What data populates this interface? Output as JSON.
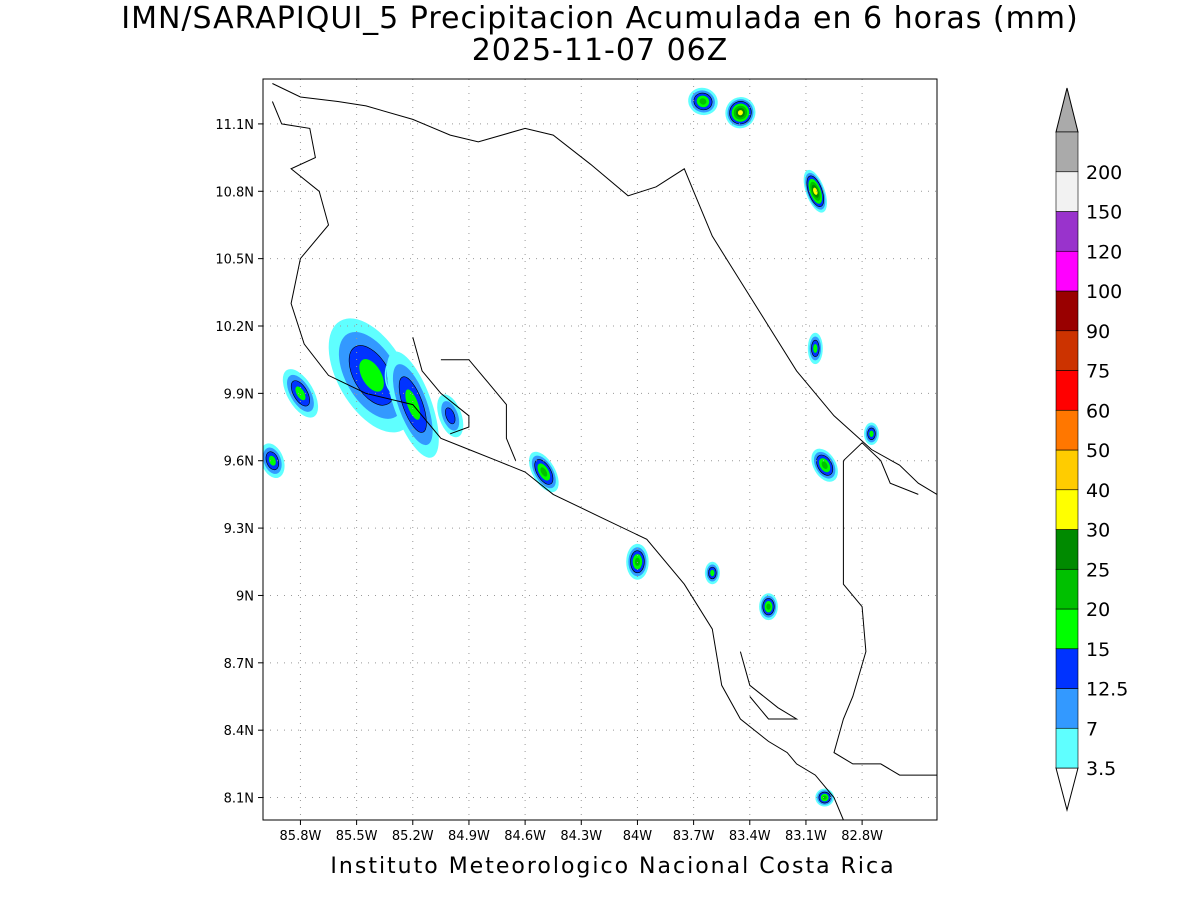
{
  "title": {
    "line1": "IMN/SARAPIQUI_5 Precipitacion Acumulada en 6 horas (mm)",
    "line2": "2025-11-07 06Z"
  },
  "footer": "Instituto Meteorologico Nacional Costa Rica",
  "map": {
    "lon_range": [
      -86.0,
      -82.4
    ],
    "lat_range": [
      8.0,
      11.3
    ],
    "x_ticks": [
      {
        "value": -85.8,
        "label": "85.8W"
      },
      {
        "value": -85.5,
        "label": "85.5W"
      },
      {
        "value": -85.2,
        "label": "85.2W"
      },
      {
        "value": -84.9,
        "label": "84.9W"
      },
      {
        "value": -84.6,
        "label": "84.6W"
      },
      {
        "value": -84.3,
        "label": "84.3W"
      },
      {
        "value": -84.0,
        "label": "84W"
      },
      {
        "value": -83.7,
        "label": "83.7W"
      },
      {
        "value": -83.4,
        "label": "83.4W"
      },
      {
        "value": -83.1,
        "label": "83.1W"
      },
      {
        "value": -82.8,
        "label": "82.8W"
      }
    ],
    "y_ticks": [
      {
        "value": 11.1,
        "label": "11.1N"
      },
      {
        "value": 10.8,
        "label": "10.8N"
      },
      {
        "value": 10.5,
        "label": "10.5N"
      },
      {
        "value": 10.2,
        "label": "10.2N"
      },
      {
        "value": 9.9,
        "label": "9.9N"
      },
      {
        "value": 9.6,
        "label": "9.6N"
      },
      {
        "value": 9.3,
        "label": "9.3N"
      },
      {
        "value": 9.0,
        "label": "9N"
      },
      {
        "value": 8.7,
        "label": "8.7N"
      },
      {
        "value": 8.4,
        "label": "8.4N"
      },
      {
        "value": 8.1,
        "label": "8.1N"
      }
    ],
    "grid": "dotted",
    "coastlines": [
      [
        [
          -85.95,
          11.2
        ],
        [
          -85.9,
          11.1
        ],
        [
          -85.75,
          11.08
        ],
        [
          -85.72,
          10.95
        ],
        [
          -85.85,
          10.9
        ],
        [
          -85.7,
          10.8
        ],
        [
          -85.65,
          10.65
        ],
        [
          -85.8,
          10.5
        ],
        [
          -85.85,
          10.3
        ],
        [
          -85.78,
          10.12
        ],
        [
          -85.65,
          9.98
        ],
        [
          -85.45,
          9.9
        ],
        [
          -85.2,
          9.85
        ],
        [
          -85.05,
          9.7
        ],
        [
          -84.9,
          9.65
        ],
        [
          -84.75,
          9.6
        ],
        [
          -84.6,
          9.55
        ],
        [
          -84.45,
          9.45
        ],
        [
          -84.2,
          9.35
        ],
        [
          -83.95,
          9.25
        ],
        [
          -83.75,
          9.05
        ],
        [
          -83.6,
          8.85
        ],
        [
          -83.55,
          8.6
        ],
        [
          -83.45,
          8.45
        ],
        [
          -83.3,
          8.35
        ],
        [
          -83.2,
          8.3
        ],
        [
          -83.15,
          8.25
        ],
        [
          -83.05,
          8.2
        ],
        [
          -82.95,
          8.1
        ],
        [
          -82.9,
          8.0
        ]
      ],
      [
        [
          -85.95,
          11.28
        ],
        [
          -85.8,
          11.22
        ],
        [
          -85.6,
          11.2
        ],
        [
          -85.45,
          11.18
        ],
        [
          -85.2,
          11.12
        ],
        [
          -85.0,
          11.05
        ],
        [
          -84.85,
          11.02
        ],
        [
          -84.6,
          11.08
        ],
        [
          -84.45,
          11.05
        ],
        [
          -84.25,
          10.92
        ],
        [
          -84.05,
          10.78
        ],
        [
          -83.9,
          10.82
        ],
        [
          -83.75,
          10.9
        ],
        [
          -83.7,
          10.8
        ],
        [
          -83.6,
          10.6
        ],
        [
          -83.45,
          10.4
        ],
        [
          -83.3,
          10.2
        ],
        [
          -83.15,
          10.0
        ],
        [
          -82.95,
          9.8
        ],
        [
          -82.75,
          9.65
        ],
        [
          -82.6,
          9.58
        ],
        [
          -82.5,
          9.5
        ],
        [
          -82.4,
          9.45
        ]
      ],
      [
        [
          -82.9,
          9.6
        ],
        [
          -82.8,
          9.68
        ],
        [
          -82.7,
          9.6
        ],
        [
          -82.65,
          9.5
        ],
        [
          -82.5,
          9.45
        ]
      ],
      [
        [
          -82.9,
          9.6
        ],
        [
          -82.9,
          9.4
        ],
        [
          -82.9,
          9.2
        ],
        [
          -82.9,
          9.05
        ],
        [
          -82.8,
          8.95
        ],
        [
          -82.78,
          8.75
        ],
        [
          -82.85,
          8.55
        ],
        [
          -82.9,
          8.45
        ],
        [
          -82.95,
          8.3
        ],
        [
          -82.85,
          8.25
        ],
        [
          -82.7,
          8.25
        ],
        [
          -82.6,
          8.2
        ],
        [
          -82.4,
          8.2
        ]
      ],
      [
        [
          -83.45,
          8.75
        ],
        [
          -83.4,
          8.6
        ],
        [
          -83.25,
          8.5
        ],
        [
          -83.15,
          8.45
        ],
        [
          -83.3,
          8.45
        ],
        [
          -83.4,
          8.55
        ]
      ],
      [
        [
          -85.2,
          10.15
        ],
        [
          -85.15,
          10.0
        ],
        [
          -85.05,
          9.9
        ],
        [
          -84.9,
          9.8
        ],
        [
          -84.9,
          9.75
        ],
        [
          -85.0,
          9.72
        ]
      ],
      [
        [
          -85.05,
          10.05
        ],
        [
          -84.9,
          10.05
        ],
        [
          -84.8,
          9.95
        ],
        [
          -84.7,
          9.85
        ],
        [
          -84.7,
          9.7
        ],
        [
          -84.65,
          9.6
        ]
      ]
    ]
  },
  "chart_data": {
    "type": "heatmap",
    "title": "IMN/SARAPIQUI_5 Precipitacion Acumulada en 6 horas (mm)",
    "subtitle": "2025-11-07 06Z",
    "xlabel": "",
    "ylabel": "",
    "units": "mm",
    "x_range": [
      -86.0,
      -82.4
    ],
    "y_range": [
      8.0,
      11.3
    ],
    "levels": [
      3.5,
      7,
      12.5,
      15,
      20,
      25,
      30,
      40,
      50,
      60,
      75,
      90,
      100,
      120,
      150,
      200
    ],
    "level_colors": [
      "#5fffff",
      "#3399ff",
      "#0033ff",
      "#00ff00",
      "#00c000",
      "#008a00",
      "#ffff00",
      "#ffcc00",
      "#ff7700",
      "#ff0000",
      "#cc3300",
      "#990000",
      "#ff00ff",
      "#9933cc",
      "#f2f2f2",
      "#aaaaaa"
    ],
    "cells": [
      {
        "lon": -85.42,
        "lat": 9.98,
        "rx": 0.18,
        "ry": 0.28,
        "rot": -30,
        "level": 3
      },
      {
        "lon": -85.3,
        "lat": 9.98,
        "rx": 0.05,
        "ry": 0.08,
        "rot": 0,
        "level": 6
      },
      {
        "lon": -85.2,
        "lat": 9.85,
        "rx": 0.1,
        "ry": 0.25,
        "rot": -20,
        "level": 3
      },
      {
        "lon": -85.0,
        "lat": 9.8,
        "rx": 0.06,
        "ry": 0.1,
        "rot": -20,
        "level": 2
      },
      {
        "lon": -85.8,
        "lat": 9.9,
        "rx": 0.07,
        "ry": 0.12,
        "rot": -30,
        "level": 3
      },
      {
        "lon": -85.95,
        "lat": 9.6,
        "rx": 0.06,
        "ry": 0.08,
        "rot": -20,
        "level": 3
      },
      {
        "lon": -84.5,
        "lat": 9.55,
        "rx": 0.06,
        "ry": 0.1,
        "rot": -30,
        "level": 4
      },
      {
        "lon": -84.0,
        "lat": 9.15,
        "rx": 0.06,
        "ry": 0.08,
        "rot": 0,
        "level": 4
      },
      {
        "lon": -83.6,
        "lat": 9.1,
        "rx": 0.04,
        "ry": 0.05,
        "rot": 0,
        "level": 3
      },
      {
        "lon": -83.3,
        "lat": 8.95,
        "rx": 0.05,
        "ry": 0.06,
        "rot": 0,
        "level": 4
      },
      {
        "lon": -83.0,
        "lat": 9.58,
        "rx": 0.06,
        "ry": 0.08,
        "rot": -30,
        "level": 4
      },
      {
        "lon": -82.75,
        "lat": 9.72,
        "rx": 0.04,
        "ry": 0.05,
        "rot": 0,
        "level": 3
      },
      {
        "lon": -83.05,
        "lat": 10.1,
        "rx": 0.04,
        "ry": 0.07,
        "rot": 0,
        "level": 3
      },
      {
        "lon": -83.65,
        "lat": 11.2,
        "rx": 0.08,
        "ry": 0.06,
        "rot": 20,
        "level": 4
      },
      {
        "lon": -83.45,
        "lat": 11.15,
        "rx": 0.08,
        "ry": 0.07,
        "rot": 20,
        "level": 6
      },
      {
        "lon": -83.05,
        "lat": 10.8,
        "rx": 0.05,
        "ry": 0.1,
        "rot": -20,
        "level": 6
      },
      {
        "lon": -83.0,
        "lat": 8.1,
        "rx": 0.05,
        "ry": 0.04,
        "rot": 0,
        "level": 4
      }
    ]
  },
  "colorbar": {
    "labels": [
      "3.5",
      "7",
      "12.5",
      "15",
      "20",
      "25",
      "30",
      "40",
      "50",
      "60",
      "75",
      "90",
      "100",
      "120",
      "150",
      "200"
    ],
    "colors": [
      "#5fffff",
      "#3399ff",
      "#0033ff",
      "#00ff00",
      "#00c000",
      "#008a00",
      "#ffff00",
      "#ffcc00",
      "#ff7700",
      "#ff0000",
      "#cc3300",
      "#990000",
      "#ff00ff",
      "#9933cc",
      "#f2f2f2",
      "#aaaaaa"
    ],
    "top_arrow_color": "#aaaaaa",
    "bottom_arrow_color": "#ffffff"
  }
}
